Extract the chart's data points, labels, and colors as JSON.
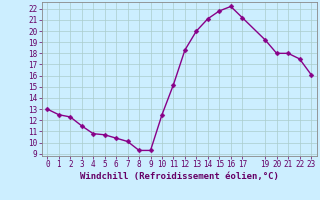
{
  "x": [
    0,
    1,
    2,
    3,
    4,
    5,
    6,
    7,
    8,
    9,
    10,
    11,
    12,
    13,
    14,
    15,
    16,
    17,
    19,
    20,
    21,
    22,
    23
  ],
  "y": [
    13.0,
    12.5,
    12.3,
    11.5,
    10.8,
    10.7,
    10.4,
    10.1,
    9.3,
    9.3,
    12.5,
    15.2,
    18.3,
    20.0,
    21.1,
    21.8,
    22.2,
    21.2,
    19.2,
    18.0,
    18.0,
    17.5,
    16.1
  ],
  "line_color": "#880088",
  "marker": "D",
  "marker_size": 2.5,
  "bg_color": "#cceeff",
  "grid_color": "#aacccc",
  "xlabel": "Windchill (Refroidissement éolien,°C)",
  "xlim": [
    -0.5,
    23.5
  ],
  "ylim": [
    8.8,
    22.6
  ],
  "yticks": [
    9,
    10,
    11,
    12,
    13,
    14,
    15,
    16,
    17,
    18,
    19,
    20,
    21,
    22
  ],
  "xticks": [
    0,
    1,
    2,
    3,
    4,
    5,
    6,
    7,
    8,
    9,
    10,
    11,
    12,
    13,
    14,
    15,
    16,
    17,
    19,
    20,
    21,
    22,
    23
  ],
  "tick_label_size": 5.5,
  "xlabel_size": 6.5,
  "text_color": "#660066",
  "line_width": 1.0,
  "spine_color": "#888888"
}
